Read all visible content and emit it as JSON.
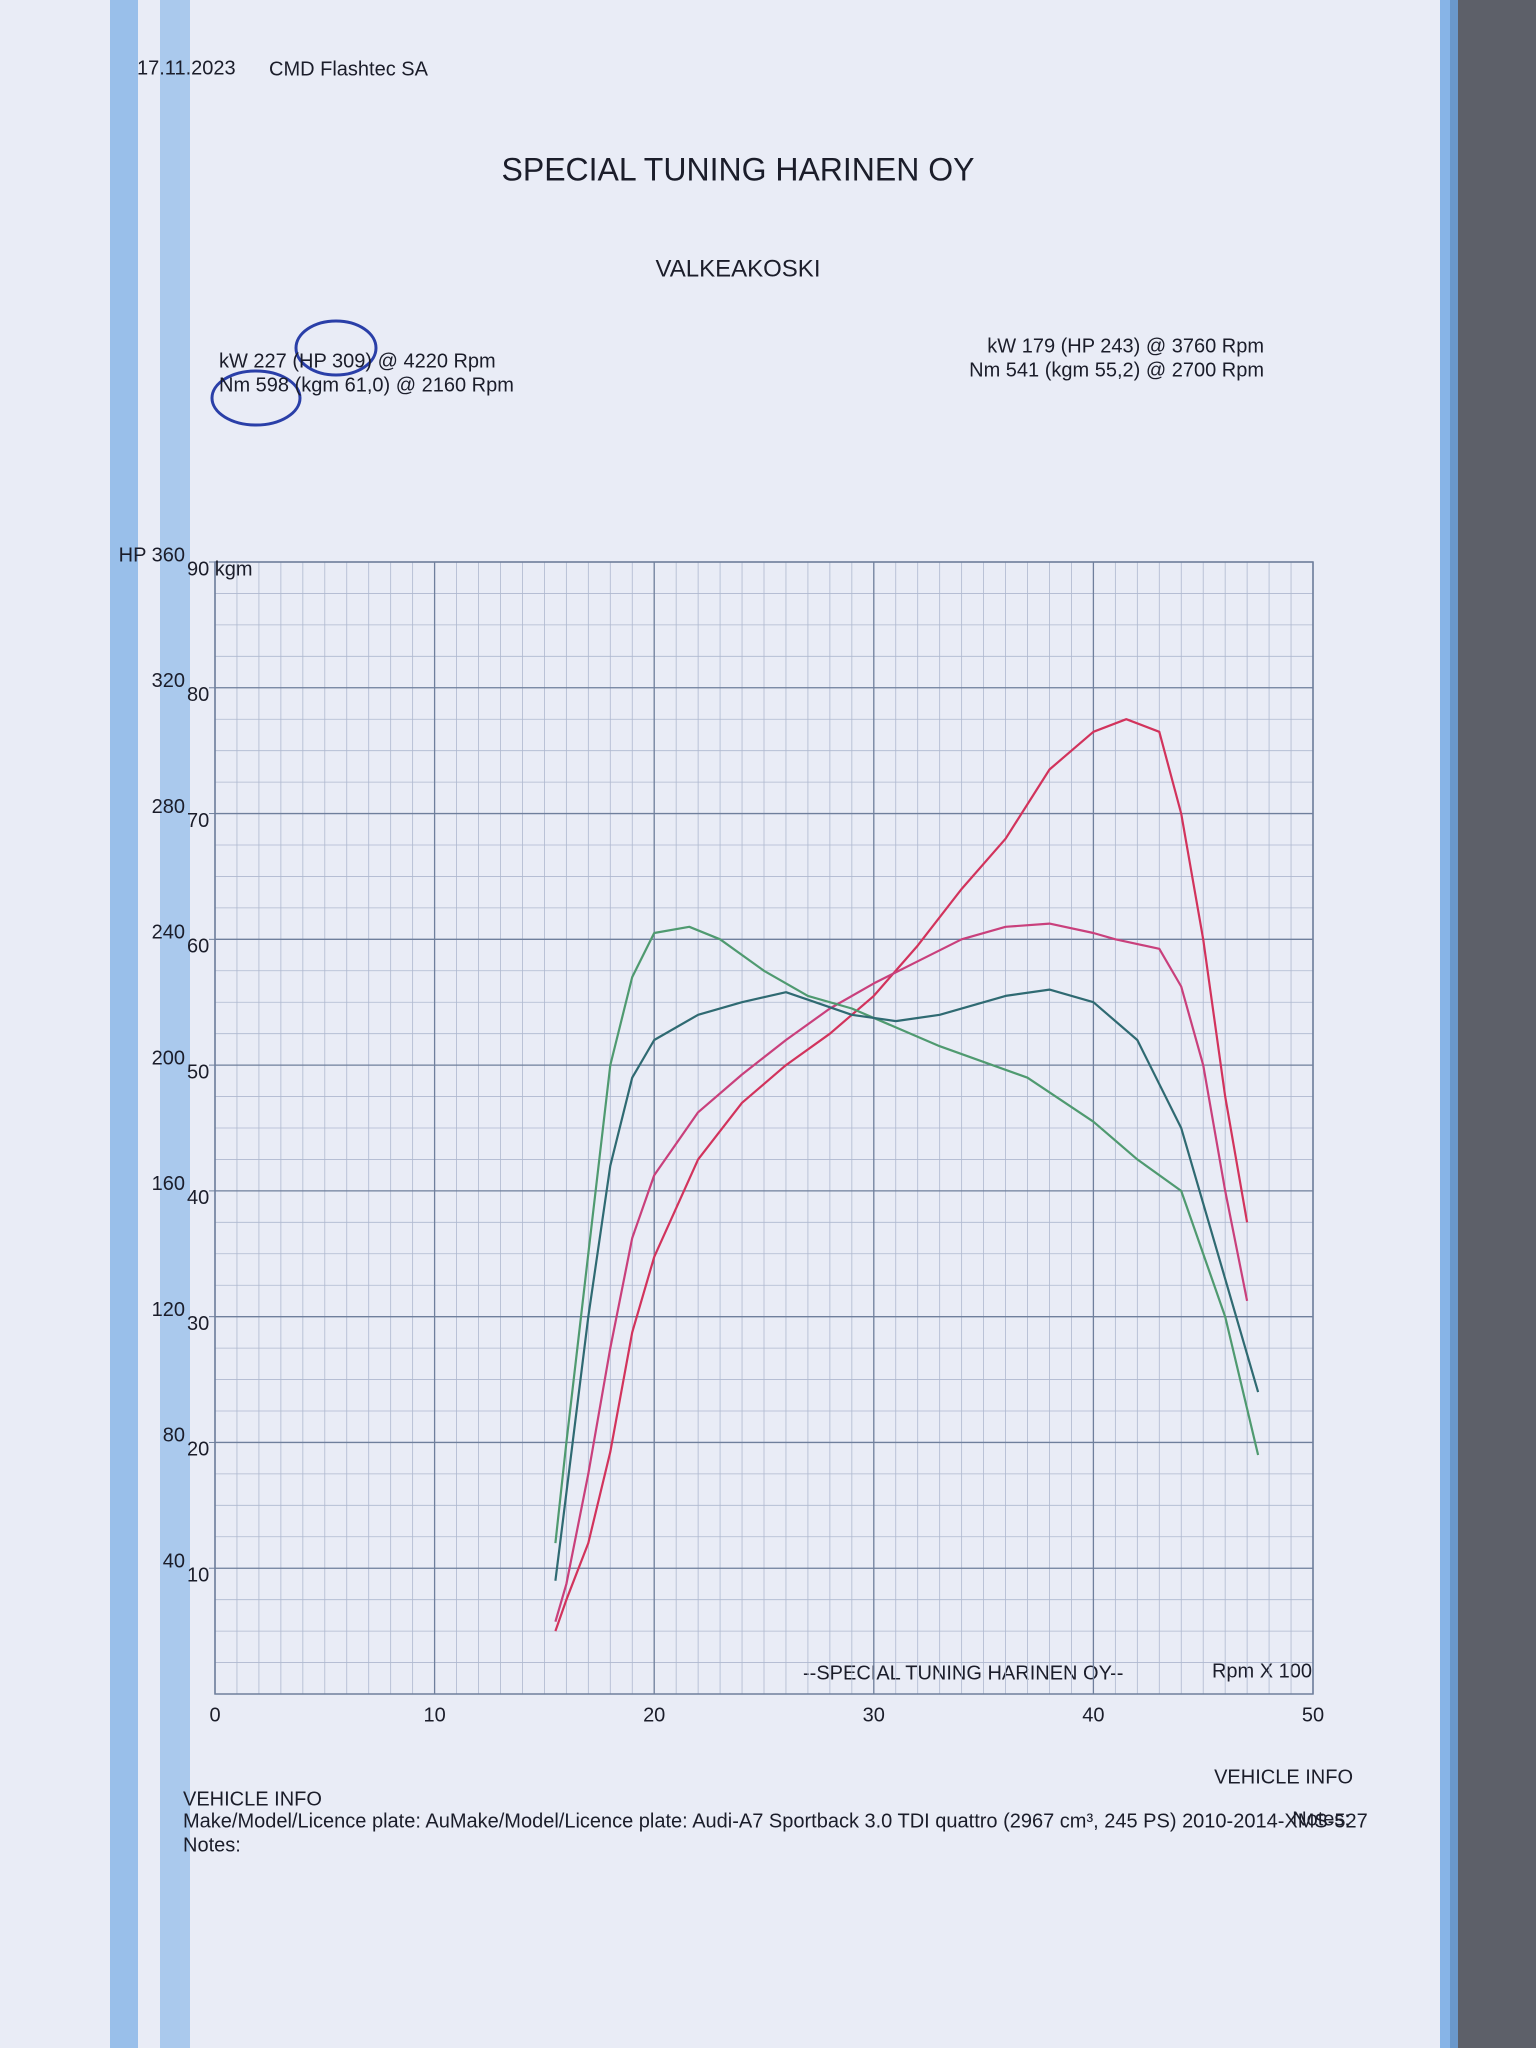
{
  "chart_data": {
    "type": "line",
    "date": "17.11.2023",
    "company": "CMD Flashtec SA",
    "title": "SPECIAL TUNING HARINEN OY",
    "subtitle": "VALKEAKOSKI",
    "peaks_left": [
      "kW 227 (HP 309) @ 4220 Rpm",
      "Nm 598 (kgm 61,0) @ 2160 Rpm"
    ],
    "peaks_right": [
      "kW 179 (HP 243) @ 3760 Rpm",
      "Nm 541 (kgm 55,2) @ 2700 Rpm"
    ],
    "plot_label": "--SPECIAL TUNING HARINEN OY--",
    "xlabel": "Rpm X 100",
    "xlim": [
      0,
      50
    ],
    "xticks": [
      0,
      10,
      20,
      30,
      40,
      50
    ],
    "ylim": [
      0,
      360
    ],
    "yticks": [
      40,
      80,
      120,
      160,
      200,
      240,
      280,
      320,
      {
        "value": 360,
        "label": "HP 360"
      }
    ],
    "y2lim": [
      0,
      90
    ],
    "y2ticks": [
      10,
      20,
      30,
      40,
      50,
      60,
      70,
      80,
      {
        "value": 90,
        "label": "90 kgm"
      }
    ],
    "grid": true,
    "series": [
      {
        "color": "#d2335c",
        "x": [
          15.5,
          16,
          17,
          18,
          19,
          20,
          22,
          24,
          26,
          28,
          30,
          32,
          34,
          36,
          38,
          40,
          41.5,
          43,
          44,
          45,
          46,
          47
        ],
        "values": [
          20,
          30,
          48,
          77,
          115,
          139,
          170,
          188,
          200,
          210,
          222,
          238,
          256,
          272,
          294,
          306,
          310,
          306,
          280,
          240,
          190,
          150
        ]
      },
      {
        "color": "#c9407c",
        "x": [
          15.5,
          16,
          17,
          18,
          19,
          20,
          22,
          24,
          26,
          28,
          30,
          32,
          34,
          36,
          38,
          40,
          41,
          43,
          44,
          45,
          46,
          47
        ],
        "values": [
          23,
          35,
          70,
          110,
          145,
          165,
          185,
          197,
          208,
          218,
          226,
          233,
          240,
          244,
          245,
          242,
          240,
          237,
          225,
          200,
          160,
          125
        ]
      },
      {
        "color": "#4f9a70",
        "axis": "y2",
        "x": [
          15.5,
          16,
          17,
          18,
          19,
          20,
          21.6,
          23,
          25,
          27,
          29,
          33,
          37,
          40,
          42,
          44,
          46,
          47.5
        ],
        "values": [
          12,
          20,
          35,
          50,
          57,
          60.5,
          61,
          60,
          57.5,
          55.5,
          54.5,
          51.5,
          49,
          45.5,
          42.5,
          40,
          30,
          19
        ]
      },
      {
        "color": "#2f6a72",
        "axis": "y2",
        "x": [
          15.5,
          16,
          17,
          18,
          19,
          20,
          22,
          24,
          26,
          27,
          29,
          31,
          33,
          36,
          38,
          40,
          42,
          44,
          46,
          47.5
        ],
        "values": [
          9,
          16,
          30,
          42,
          49,
          52,
          54,
          55,
          55.8,
          55.2,
          54,
          53.5,
          54,
          55.5,
          56,
          55,
          52,
          45,
          33,
          24
        ]
      }
    ]
  },
  "footer": {
    "left": [
      "VEHICLE INFO",
      "Make/Model/Licence plate: AuMake/Model/Licence plate: Audi-A7 Sportback 3.0 TDI quattro (2967 cm³, 245 PS) 2010-2014-XMS-527",
      "Notes:"
    ],
    "right": [
      "VEHICLE INFO",
      "Notes:"
    ]
  }
}
